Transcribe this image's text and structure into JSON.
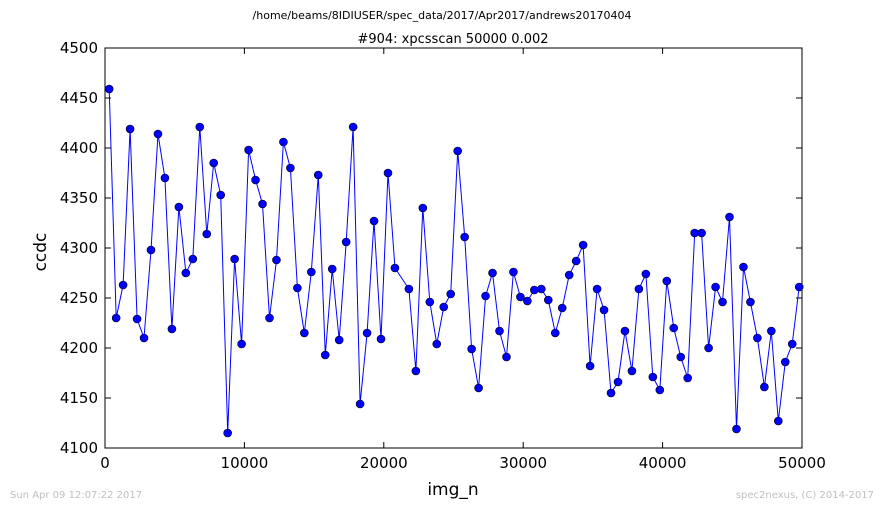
{
  "chart_data": {
    "type": "line",
    "suptitle": "/home/beams/8IDIUSER/spec_data/2017/Apr2017/andrews20170404",
    "title": "#904: xpcsscan 50000 0.002",
    "xlabel": "img_n",
    "ylabel": "ccdc",
    "xlim": [
      0,
      50000
    ],
    "ylim": [
      4100,
      4500
    ],
    "xticks": [
      0,
      10000,
      20000,
      30000,
      40000,
      50000
    ],
    "yticks": [
      4100,
      4150,
      4200,
      4250,
      4300,
      4350,
      4400,
      4450,
      4500
    ],
    "grid": false,
    "colors": {
      "series": "#0000ff",
      "footer": "#bfbfbf"
    },
    "series": [
      {
        "x": [
          300,
          800,
          1300,
          1800,
          2300,
          2800,
          3300,
          3800,
          4300,
          4800,
          5300,
          5800,
          6300,
          6800,
          7300,
          7800,
          8300,
          8800,
          9300,
          9800,
          10300,
          10800,
          11300,
          11800,
          12300,
          12800,
          13300,
          13800,
          14300,
          14800,
          15300,
          15800,
          16300,
          16800,
          17300,
          17800,
          18300,
          18800,
          19300,
          19800,
          20300,
          20800,
          21800,
          22300,
          22800,
          23300,
          23800,
          24300,
          24800,
          25300,
          25800,
          26300,
          26800,
          27300,
          27800,
          28300,
          28800,
          29300,
          29800,
          30300,
          30800,
          31300,
          31800,
          32300,
          32800,
          33300,
          33800,
          34300,
          34800,
          35300,
          35800,
          36300,
          36800,
          37300,
          37800,
          38300,
          38800,
          39300,
          39800,
          40300,
          40800,
          41300,
          41800,
          42300,
          42800,
          43300,
          43800,
          44300,
          44800,
          45300,
          45800,
          46300,
          46800,
          47300,
          47800,
          48300,
          48800,
          49300,
          49800
        ],
        "y": [
          4459,
          4230,
          4263,
          4419,
          4229,
          4210,
          4298,
          4414,
          4370,
          4219,
          4341,
          4275,
          4289,
          4421,
          4314,
          4385,
          4353,
          4115,
          4289,
          4204,
          4398,
          4368,
          4344,
          4230,
          4288,
          4406,
          4380,
          4260,
          4215,
          4276,
          4373,
          4193,
          4279,
          4208,
          4306,
          4421,
          4144,
          4215,
          4327,
          4209,
          4375,
          4280,
          4259,
          4177,
          4340,
          4246,
          4204,
          4241,
          4254,
          4397,
          4311,
          4199,
          4160,
          4252,
          4275,
          4217,
          4191,
          4276,
          4251,
          4247,
          4258,
          4259,
          4248,
          4215,
          4240,
          4273,
          4287,
          4303,
          4182,
          4259,
          4238,
          4155,
          4166,
          4217,
          4177,
          4259,
          4274,
          4171,
          4158,
          4267,
          4220,
          4191,
          4170,
          4315,
          4315,
          4200,
          4261,
          4246,
          4331,
          4119,
          4281,
          4246,
          4210,
          4161,
          4217,
          4127,
          4186,
          4204,
          4261
        ]
      }
    ]
  },
  "footer": {
    "timestamp": "Sun Apr 09 12:07:22 2017",
    "credit": "spec2nexus, (C) 2014-2017"
  }
}
